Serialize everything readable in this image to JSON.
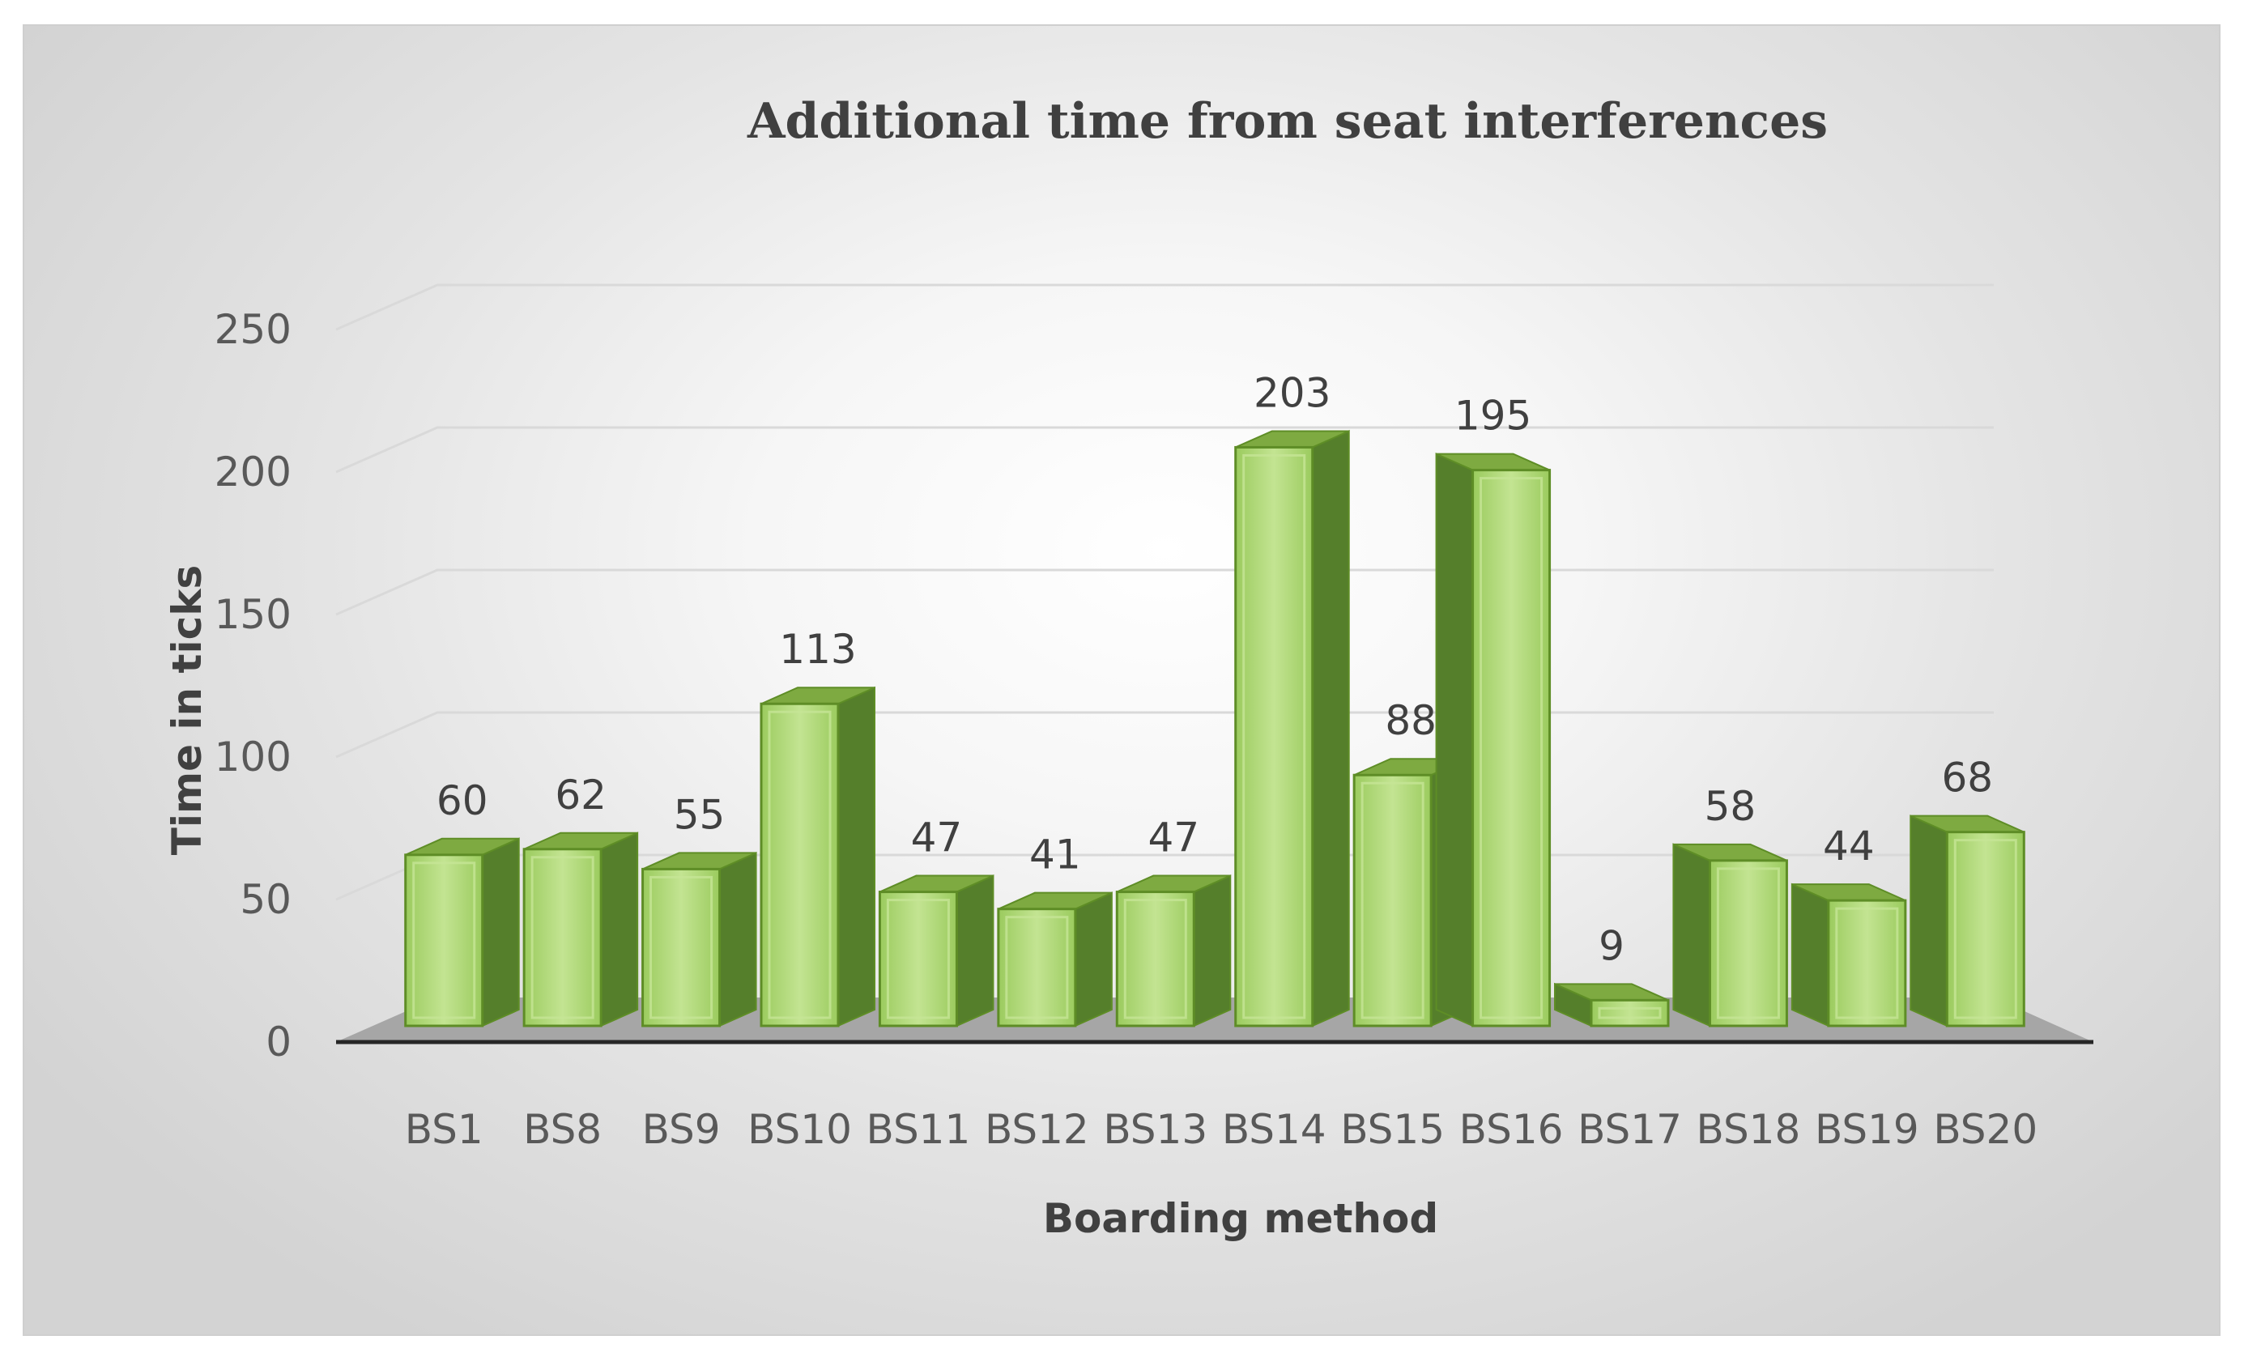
{
  "chart_data": {
    "type": "bar",
    "title": "Additional time from seat interferences",
    "xlabel": "Boarding method",
    "ylabel": "Time in ticks",
    "categories": [
      "BS1",
      "BS8",
      "BS9",
      "BS10",
      "BS11",
      "BS12",
      "BS13",
      "BS14",
      "BS15",
      "BS16",
      "BS17",
      "BS18",
      "BS19",
      "BS20"
    ],
    "values": [
      60,
      62,
      55,
      113,
      47,
      41,
      47,
      203,
      88,
      195,
      9,
      58,
      44,
      68
    ],
    "data_labels": [
      "60",
      "62",
      "55",
      "113",
      "47",
      "41",
      "47",
      "203",
      "88",
      "195",
      "9",
      "58",
      "44",
      "68"
    ],
    "ylim": [
      0,
      250
    ],
    "yticks": [
      0,
      50,
      100,
      150,
      200,
      250
    ],
    "ytick_labels": [
      "0",
      "50",
      "100",
      "150",
      "200",
      "250"
    ],
    "grid": true,
    "legend": "none",
    "style": "3d-column",
    "colors": {
      "bar_front": "#a9d46f",
      "bar_front_light": "#c6e596",
      "bar_outline": "#5e8d26",
      "bar_side": "#557f2b",
      "bar_top": "#7eaa41",
      "floor": "#a6a6a6",
      "axis": "#262626",
      "grid": "#d9d9d9"
    }
  }
}
